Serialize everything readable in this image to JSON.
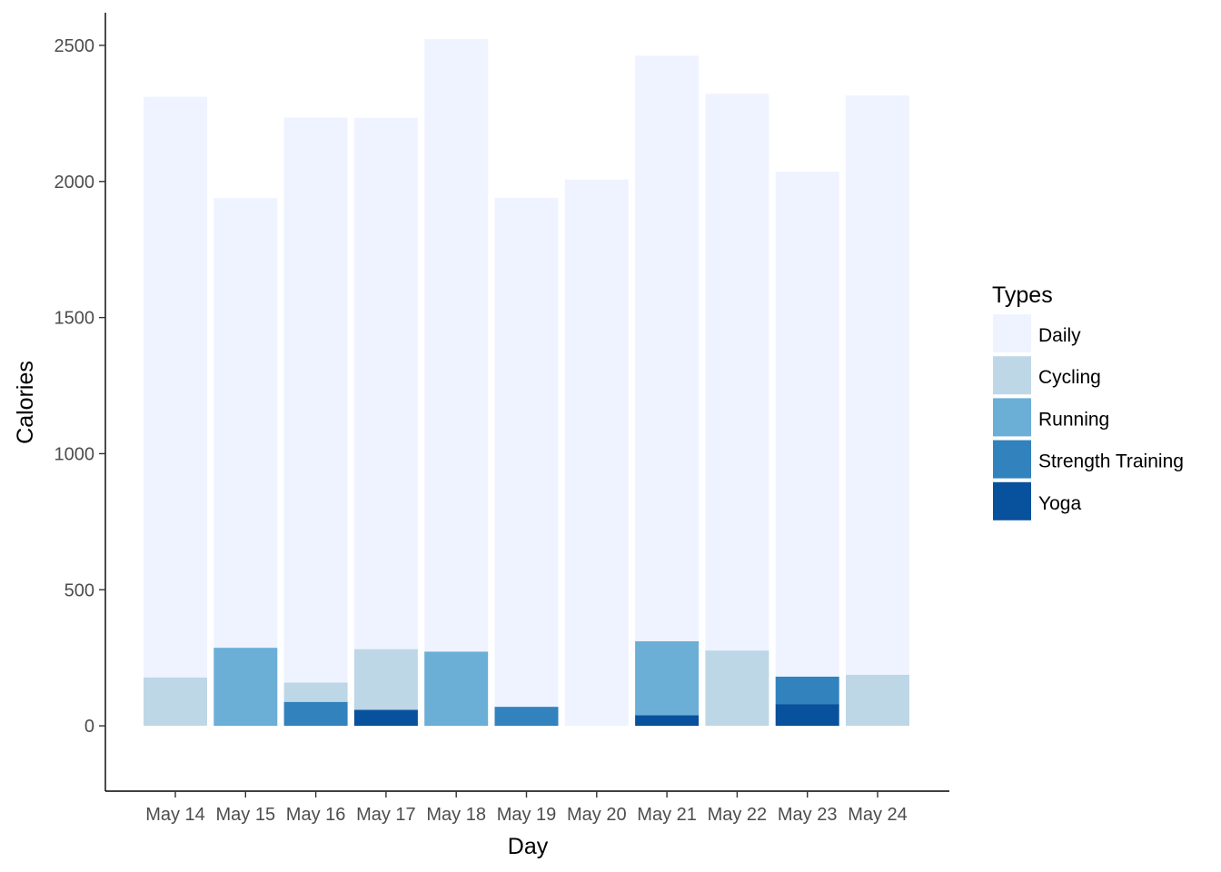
{
  "chart_data": {
    "type": "bar",
    "stacked": true,
    "title": "",
    "xlabel": "Day",
    "ylabel": "Calories",
    "ylim": [
      -240,
      2620
    ],
    "yticks": [
      0,
      500,
      1000,
      1500,
      2000,
      2500
    ],
    "grid": false,
    "legend": {
      "title": "Types",
      "position": "right"
    },
    "categories": [
      "May 14",
      "May 15",
      "May 16",
      "May 17",
      "May 18",
      "May 19",
      "May 20",
      "May 21",
      "May 22",
      "May 23",
      "May 24"
    ],
    "series": [
      {
        "name": "Daily",
        "color": "#eff3ff",
        "values": [
          2133,
          1652,
          2076,
          1952,
          2250,
          1870,
          2007,
          2151,
          2045,
          1855,
          2128
        ]
      },
      {
        "name": "Cycling",
        "color": "#bdd7e7",
        "values": [
          178,
          0,
          71,
          223,
          0,
          0,
          0,
          0,
          277,
          0,
          188
        ]
      },
      {
        "name": "Running",
        "color": "#6baed6",
        "values": [
          0,
          287,
          0,
          0,
          273,
          0,
          0,
          272,
          0,
          0,
          0
        ]
      },
      {
        "name": "Strength Training",
        "color": "#3182bd",
        "values": [
          0,
          0,
          88,
          0,
          0,
          70,
          0,
          0,
          0,
          101,
          0
        ]
      },
      {
        "name": "Yoga",
        "color": "#08519c",
        "values": [
          0,
          0,
          0,
          59,
          0,
          0,
          0,
          39,
          0,
          80,
          0
        ]
      }
    ]
  }
}
